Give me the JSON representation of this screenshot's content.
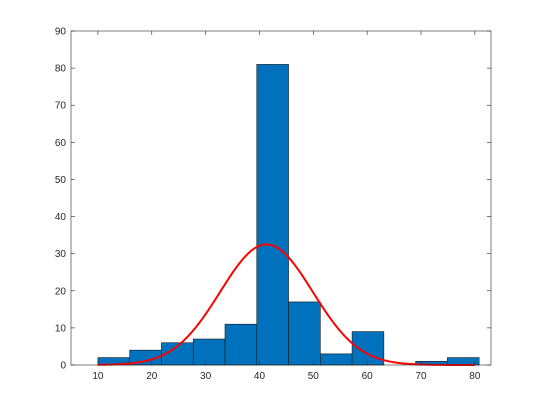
{
  "chart_data": {
    "type": "bar",
    "subtype": "histogram-with-normal-fit",
    "title": "",
    "xlabel": "",
    "ylabel": "",
    "xlim": [
      5,
      83
    ],
    "ylim": [
      0,
      90
    ],
    "xticks": [
      10,
      20,
      30,
      40,
      50,
      60,
      70,
      80
    ],
    "yticks": [
      0,
      10,
      20,
      30,
      40,
      50,
      60,
      70,
      80,
      90
    ],
    "grid": false,
    "legend": "none",
    "bins": [
      {
        "x0": 10.0,
        "x1": 15.9,
        "count": 2
      },
      {
        "x0": 15.9,
        "x1": 21.8,
        "count": 4
      },
      {
        "x0": 21.8,
        "x1": 27.7,
        "count": 6
      },
      {
        "x0": 27.7,
        "x1": 33.6,
        "count": 7
      },
      {
        "x0": 33.6,
        "x1": 39.5,
        "count": 11
      },
      {
        "x0": 39.5,
        "x1": 45.4,
        "count": 81
      },
      {
        "x0": 45.4,
        "x1": 51.3,
        "count": 17
      },
      {
        "x0": 51.3,
        "x1": 57.2,
        "count": 3
      },
      {
        "x0": 57.2,
        "x1": 63.1,
        "count": 9
      },
      {
        "x0": 63.1,
        "x1": 69.0,
        "count": 0
      },
      {
        "x0": 69.0,
        "x1": 74.9,
        "count": 1
      },
      {
        "x0": 74.9,
        "x1": 80.8,
        "count": 2
      }
    ],
    "fit_curve": {
      "type": "normal",
      "mean": 41.3,
      "sigma": 8.6,
      "peak": 32.5,
      "x_range": [
        10,
        80
      ]
    },
    "colors": {
      "bar_fill": "#0072BD",
      "bar_edge": "#1a1a1a",
      "fit_line": "#FF0000",
      "axis": "#262626",
      "background": "#FFFFFF"
    }
  }
}
